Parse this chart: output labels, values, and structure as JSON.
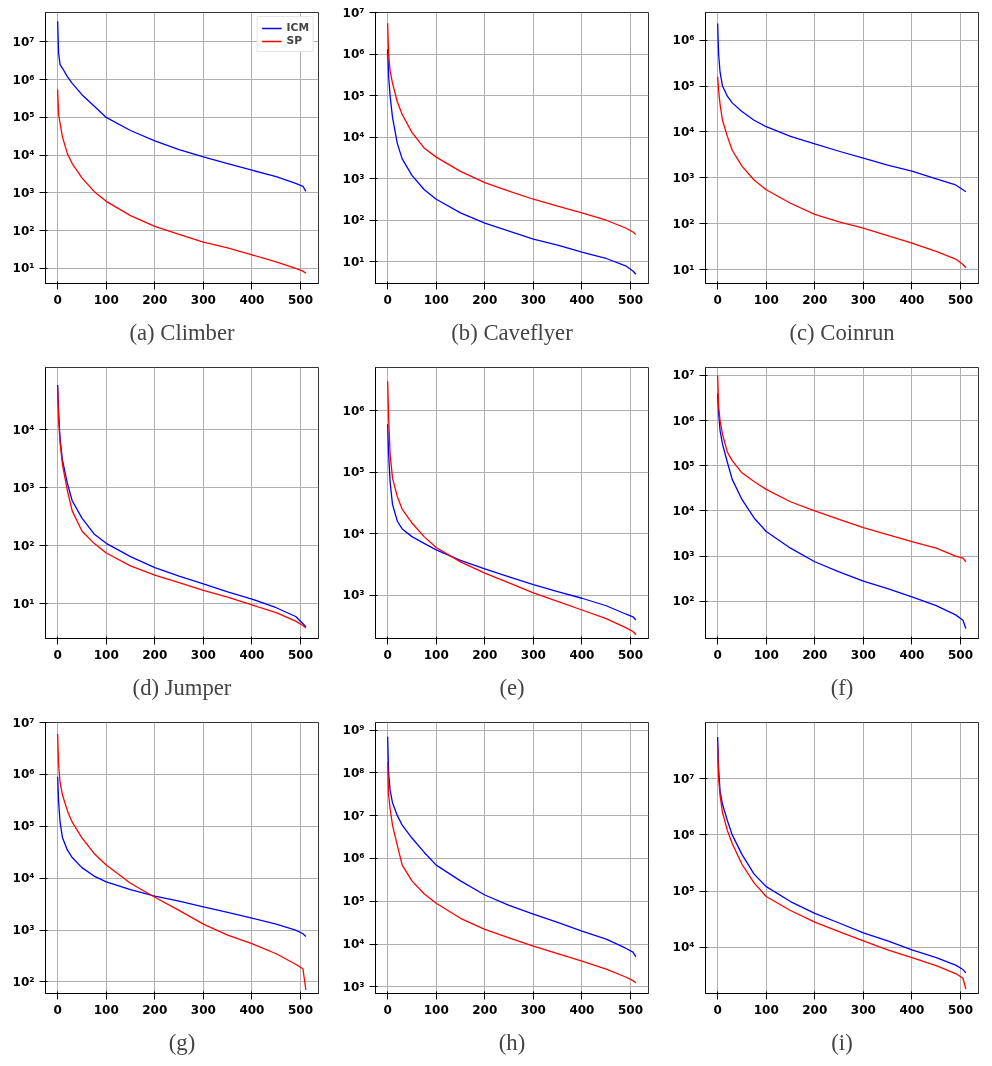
{
  "chart_data": [
    {
      "type": "line",
      "title": "(a) Climber",
      "x": [
        0,
        2,
        5,
        10,
        20,
        30,
        50,
        75,
        100,
        150,
        200,
        250,
        300,
        350,
        400,
        450,
        490,
        505,
        511
      ],
      "xlim": [
        -25,
        537
      ],
      "xticks": [
        0,
        100,
        200,
        300,
        400,
        500
      ],
      "ylim": [
        4,
        60000000
      ],
      "log": true,
      "grid": true,
      "legend": "top right",
      "yticks": [
        {
          "value": 10,
          "label": "10¹"
        },
        {
          "value": 100,
          "label": "10²"
        },
        {
          "value": 1000,
          "label": "10³"
        },
        {
          "value": 10000,
          "label": "10⁴"
        },
        {
          "value": 100000,
          "label": "10⁵"
        },
        {
          "value": 1000000,
          "label": "10⁶"
        },
        {
          "value": 10000000,
          "label": "10⁷"
        }
      ],
      "series": [
        {
          "name": "ICM",
          "color": "#0000ff",
          "values": [
            35000000,
            5000000,
            2500000,
            2000000,
            1200000,
            800000,
            400000,
            200000,
            100000,
            45000,
            24000,
            14000,
            9000,
            6000,
            4000,
            2700,
            1800,
            1500,
            1100
          ]
        },
        {
          "name": "SP",
          "color": "#ff0000",
          "values": [
            550000,
            120000,
            70000,
            30000,
            11000,
            6000,
            2500,
            1100,
            600,
            250,
            130,
            80,
            50,
            35,
            23,
            15,
            10,
            8.5,
            7.5
          ]
        }
      ]
    },
    {
      "type": "line",
      "title": "(b) Caveflyer",
      "x": [
        0,
        2,
        5,
        10,
        20,
        30,
        50,
        75,
        100,
        150,
        200,
        250,
        300,
        350,
        400,
        450,
        490,
        505,
        511
      ],
      "xlim": [
        -25,
        537
      ],
      "xticks": [
        0,
        100,
        200,
        300,
        400,
        500
      ],
      "ylim": [
        3,
        10000000
      ],
      "log": true,
      "grid": true,
      "yticks": [
        {
          "value": 10,
          "label": "10¹"
        },
        {
          "value": 100,
          "label": "10²"
        },
        {
          "value": 1000,
          "label": "10³"
        },
        {
          "value": 10000,
          "label": "10⁴"
        },
        {
          "value": 100000,
          "label": "10⁵"
        },
        {
          "value": 1000000,
          "label": "10⁶"
        },
        {
          "value": 10000000,
          "label": "10⁷"
        }
      ],
      "series": [
        {
          "color": "#0000ff",
          "values": [
            1300000,
            300000,
            100000,
            30000,
            7000,
            3000,
            1200,
            550,
            320,
            150,
            85,
            55,
            35,
            25,
            17,
            12,
            8,
            6,
            5
          ]
        },
        {
          "color": "#ff0000",
          "values": [
            5500000,
            1000000,
            400000,
            200000,
            70000,
            35000,
            13000,
            5500,
            3300,
            1500,
            800,
            500,
            320,
            220,
            150,
            100,
            65,
            52,
            45
          ]
        }
      ]
    },
    {
      "type": "line",
      "title": "(c) Coinrun",
      "x": [
        0,
        2,
        5,
        10,
        20,
        30,
        50,
        75,
        100,
        150,
        200,
        250,
        300,
        350,
        400,
        450,
        490,
        505,
        511
      ],
      "xlim": [
        -25,
        537
      ],
      "xticks": [
        0,
        100,
        200,
        300,
        400,
        500
      ],
      "ylim": [
        5,
        4000000
      ],
      "log": true,
      "grid": true,
      "yticks": [
        {
          "value": 10,
          "label": "10¹"
        },
        {
          "value": 100,
          "label": "10²"
        },
        {
          "value": 1000,
          "label": "10³"
        },
        {
          "value": 10000,
          "label": "10⁴"
        },
        {
          "value": 100000,
          "label": "10⁵"
        },
        {
          "value": 1000000,
          "label": "10⁶"
        }
      ],
      "series": [
        {
          "color": "#0000ff",
          "values": [
            2300000,
            500000,
            200000,
            100000,
            60000,
            43000,
            28000,
            18000,
            13000,
            8000,
            5500,
            3800,
            2700,
            1900,
            1400,
            950,
            700,
            550,
            500
          ]
        },
        {
          "color": "#ff0000",
          "values": [
            160000,
            80000,
            40000,
            18000,
            8000,
            4000,
            1800,
            900,
            550,
            280,
            160,
            110,
            80,
            55,
            38,
            25,
            17,
            13,
            11
          ]
        }
      ]
    },
    {
      "type": "line",
      "title": "(d) Jumper",
      "x": [
        0,
        2,
        5,
        10,
        20,
        30,
        50,
        75,
        100,
        150,
        200,
        250,
        300,
        350,
        400,
        450,
        490,
        505,
        511
      ],
      "xlim": [
        -25,
        537
      ],
      "xticks": [
        0,
        100,
        200,
        300,
        400,
        500
      ],
      "ylim": [
        2.5,
        120000
      ],
      "log": true,
      "grid": true,
      "yticks": [
        {
          "value": 10,
          "label": "10¹"
        },
        {
          "value": 100,
          "label": "10²"
        },
        {
          "value": 1000,
          "label": "10³"
        },
        {
          "value": 10000,
          "label": "10⁴"
        }
      ],
      "series": [
        {
          "color": "#0000ff",
          "values": [
            60000,
            20000,
            7000,
            3000,
            1200,
            600,
            300,
            160,
            110,
            65,
            42,
            30,
            22,
            16,
            12,
            8.5,
            6,
            4.5,
            4
          ]
        },
        {
          "color": "#ff0000",
          "values": [
            55000,
            15000,
            6000,
            2500,
            900,
            400,
            180,
            110,
            75,
            45,
            31,
            23,
            17,
            13,
            9.5,
            7,
            5,
            4.2,
            3.8
          ]
        }
      ]
    },
    {
      "type": "line",
      "title": "(e)",
      "x": [
        0,
        2,
        5,
        10,
        20,
        30,
        50,
        75,
        100,
        150,
        200,
        250,
        300,
        350,
        400,
        450,
        490,
        505,
        511
      ],
      "xlim": [
        -25,
        537
      ],
      "xticks": [
        0,
        100,
        200,
        300,
        400,
        500
      ],
      "ylim": [
        200,
        5000000
      ],
      "log": true,
      "grid": true,
      "yticks": [
        {
          "value": 1000,
          "label": "10³"
        },
        {
          "value": 10000,
          "label": "10⁴"
        },
        {
          "value": 100000,
          "label": "10⁵"
        },
        {
          "value": 1000000,
          "label": "10⁶"
        }
      ],
      "series": [
        {
          "color": "#0000ff",
          "values": [
            600000,
            200000,
            70000,
            30000,
            16000,
            12000,
            9000,
            7000,
            5500,
            3700,
            2700,
            2000,
            1500,
            1150,
            900,
            680,
            500,
            450,
            400
          ]
        },
        {
          "color": "#ff0000",
          "values": [
            3000000,
            800000,
            200000,
            80000,
            40000,
            25000,
            15000,
            9000,
            6000,
            3500,
            2300,
            1600,
            1100,
            800,
            580,
            420,
            300,
            260,
            230
          ]
        }
      ]
    },
    {
      "type": "line",
      "title": "(f)",
      "x": [
        0,
        2,
        5,
        10,
        20,
        30,
        50,
        75,
        100,
        150,
        200,
        250,
        300,
        350,
        400,
        450,
        490,
        505,
        511
      ],
      "xlim": [
        -25,
        537
      ],
      "xticks": [
        0,
        100,
        200,
        300,
        400,
        500
      ],
      "ylim": [
        15,
        15000000
      ],
      "log": true,
      "grid": true,
      "yticks": [
        {
          "value": 100,
          "label": "10²"
        },
        {
          "value": 1000,
          "label": "10³"
        },
        {
          "value": 10000,
          "label": "10⁴"
        },
        {
          "value": 100000,
          "label": "10⁵"
        },
        {
          "value": 1000000,
          "label": "10⁶"
        },
        {
          "value": 10000000,
          "label": "10⁷"
        }
      ],
      "series": [
        {
          "color": "#0000ff",
          "values": [
            4000000,
            1500000,
            600000,
            300000,
            120000,
            50000,
            18000,
            7000,
            3500,
            1500,
            750,
            450,
            280,
            190,
            125,
            80,
            50,
            38,
            25
          ]
        },
        {
          "color": "#ff0000",
          "values": [
            10000000,
            2000000,
            1000000,
            500000,
            200000,
            130000,
            70000,
            45000,
            30000,
            16000,
            10000,
            6500,
            4300,
            3000,
            2100,
            1500,
            1000,
            900,
            750
          ]
        }
      ]
    },
    {
      "type": "line",
      "title": "(g)",
      "x": [
        0,
        2,
        5,
        10,
        20,
        30,
        50,
        75,
        100,
        150,
        200,
        250,
        300,
        350,
        400,
        450,
        490,
        505,
        511
      ],
      "xlim": [
        -25,
        537
      ],
      "xticks": [
        0,
        100,
        200,
        300,
        400,
        500
      ],
      "ylim": [
        60,
        10000000
      ],
      "log": true,
      "grid": true,
      "yticks": [
        {
          "value": 100,
          "label": "10²"
        },
        {
          "value": 1000,
          "label": "10³"
        },
        {
          "value": 10000,
          "label": "10⁴"
        },
        {
          "value": 100000,
          "label": "10⁵"
        },
        {
          "value": 1000000,
          "label": "10⁶"
        },
        {
          "value": 10000000,
          "label": "10⁷"
        }
      ],
      "series": [
        {
          "color": "#0000ff",
          "values": [
            900000,
            300000,
            120000,
            60000,
            35000,
            25000,
            16000,
            11000,
            8500,
            6000,
            4500,
            3600,
            2800,
            2200,
            1700,
            1300,
            1000,
            850,
            750
          ]
        },
        {
          "color": "#ff0000",
          "values": [
            6000000,
            1500000,
            700000,
            400000,
            200000,
            120000,
            60000,
            30000,
            18000,
            8000,
            4300,
            2400,
            1300,
            800,
            550,
            350,
            220,
            180,
            70
          ]
        }
      ]
    },
    {
      "type": "line",
      "title": "(h)",
      "x": [
        0,
        2,
        5,
        10,
        20,
        30,
        50,
        75,
        100,
        150,
        200,
        250,
        300,
        350,
        400,
        450,
        490,
        505,
        511
      ],
      "xlim": [
        -25,
        537
      ],
      "xticks": [
        0,
        100,
        200,
        300,
        400,
        500
      ],
      "ylim": [
        700,
        1500000000
      ],
      "log": true,
      "grid": true,
      "yticks": [
        {
          "value": 1000,
          "label": "10³"
        },
        {
          "value": 10000,
          "label": "10⁴"
        },
        {
          "value": 100000,
          "label": "10⁵"
        },
        {
          "value": 1000000,
          "label": "10⁶"
        },
        {
          "value": 10000000,
          "label": "10⁷"
        },
        {
          "value": 100000000,
          "label": "10⁸"
        },
        {
          "value": 1000000000,
          "label": "10⁹"
        }
      ],
      "series": [
        {
          "color": "#0000ff",
          "values": [
            700000000,
            100000000,
            40000000,
            20000000,
            10000000,
            6000000,
            3000000,
            1400000,
            700000,
            300000,
            140000,
            80000,
            50000,
            32000,
            20000,
            13000,
            8000,
            6500,
            5000
          ]
        },
        {
          "color": "#ff0000",
          "values": [
            180000000,
            30000000,
            15000000,
            6000000,
            2000000,
            700000,
            300000,
            150000,
            90000,
            40000,
            22000,
            14000,
            9000,
            6000,
            4000,
            2600,
            1700,
            1400,
            1250
          ]
        }
      ]
    },
    {
      "type": "line",
      "title": "(i)",
      "x": [
        0,
        2,
        5,
        10,
        20,
        30,
        50,
        75,
        100,
        150,
        200,
        250,
        300,
        350,
        400,
        450,
        490,
        505,
        511
      ],
      "xlim": [
        -25,
        537
      ],
      "xticks": [
        0,
        100,
        200,
        300,
        400,
        500
      ],
      "ylim": [
        1500,
        100000000
      ],
      "log": true,
      "grid": true,
      "yticks": [
        {
          "value": 10000,
          "label": "10⁴"
        },
        {
          "value": 100000,
          "label": "10⁵"
        },
        {
          "value": 1000000,
          "label": "10⁶"
        },
        {
          "value": 10000000,
          "label": "10⁷"
        }
      ],
      "series": [
        {
          "color": "#0000ff",
          "values": [
            55000000,
            15000000,
            6000000,
            3500000,
            1800000,
            1000000,
            450000,
            200000,
            120000,
            65000,
            40000,
            27000,
            18000,
            13000,
            9000,
            6500,
            4800,
            4000,
            3500
          ]
        },
        {
          "color": "#ff0000",
          "values": [
            40000000,
            10000000,
            5000000,
            2500000,
            1200000,
            700000,
            300000,
            140000,
            80000,
            45000,
            28000,
            19000,
            13000,
            9000,
            6500,
            4700,
            3400,
            2800,
            1800
          ]
        }
      ]
    }
  ]
}
